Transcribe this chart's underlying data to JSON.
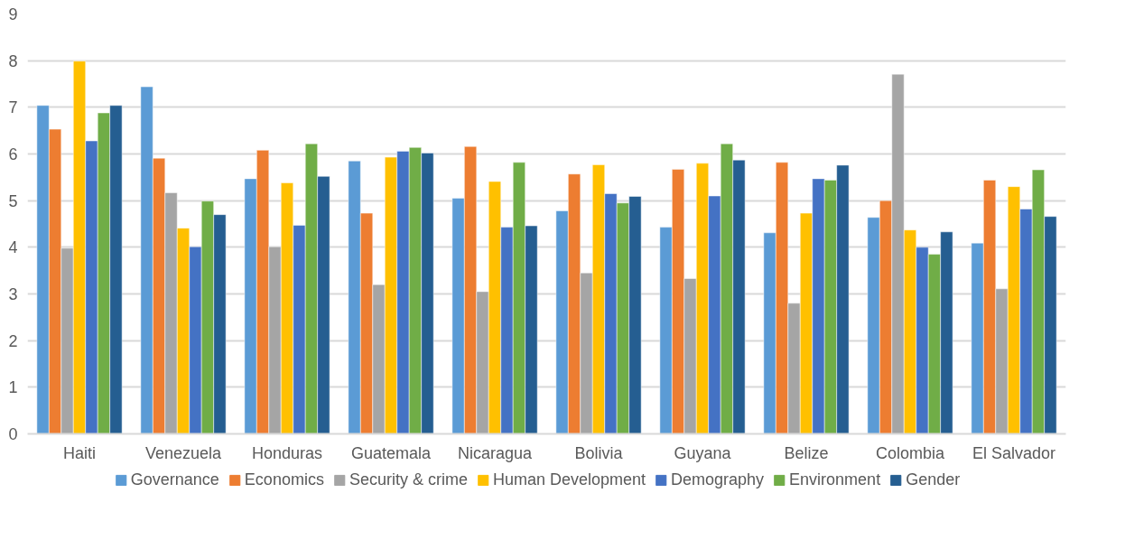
{
  "chart_data": {
    "type": "bar",
    "categories": [
      "Haiti",
      "Venezuela",
      "Honduras",
      "Guatemala",
      "Nicaragua",
      "Bolivia",
      "Guyana",
      "Belize",
      "Colombia",
      "El Salvador"
    ],
    "series": [
      {
        "name": "Governance",
        "color": "#5b9bd5",
        "values": [
          7.04,
          7.44,
          5.47,
          5.85,
          5.05,
          4.78,
          4.43,
          4.31,
          4.64,
          4.09
        ]
      },
      {
        "name": "Economics",
        "color": "#ed7d31",
        "values": [
          6.53,
          5.91,
          6.08,
          4.73,
          6.16,
          5.57,
          5.67,
          5.82,
          5.0,
          5.44
        ]
      },
      {
        "name": "Security & crime",
        "color": "#a5a5a5",
        "values": [
          3.98,
          5.17,
          4.01,
          3.2,
          3.05,
          3.45,
          3.33,
          2.8,
          7.71,
          3.11
        ]
      },
      {
        "name": "Human Development",
        "color": "#ffc000",
        "values": [
          7.99,
          4.41,
          5.38,
          5.93,
          5.41,
          5.77,
          5.8,
          4.73,
          4.37,
          5.3
        ]
      },
      {
        "name": "Demography",
        "color": "#4472c4",
        "values": [
          6.28,
          4.01,
          4.47,
          6.06,
          4.43,
          5.15,
          5.1,
          5.47,
          4.0,
          4.82
        ]
      },
      {
        "name": "Environment",
        "color": "#70ad47",
        "values": [
          6.88,
          4.99,
          6.22,
          6.14,
          5.82,
          4.95,
          6.22,
          5.44,
          3.85,
          5.66
        ]
      },
      {
        "name": "Gender",
        "color": "#255e91",
        "values": [
          7.04,
          4.7,
          5.52,
          6.02,
          4.46,
          5.09,
          5.87,
          5.76,
          4.33,
          4.66
        ]
      }
    ],
    "ylim": [
      0,
      9
    ],
    "yticks": [
      0,
      1,
      2,
      3,
      4,
      5,
      6,
      7,
      8,
      9
    ],
    "grid": "y",
    "legend": "bottom"
  }
}
